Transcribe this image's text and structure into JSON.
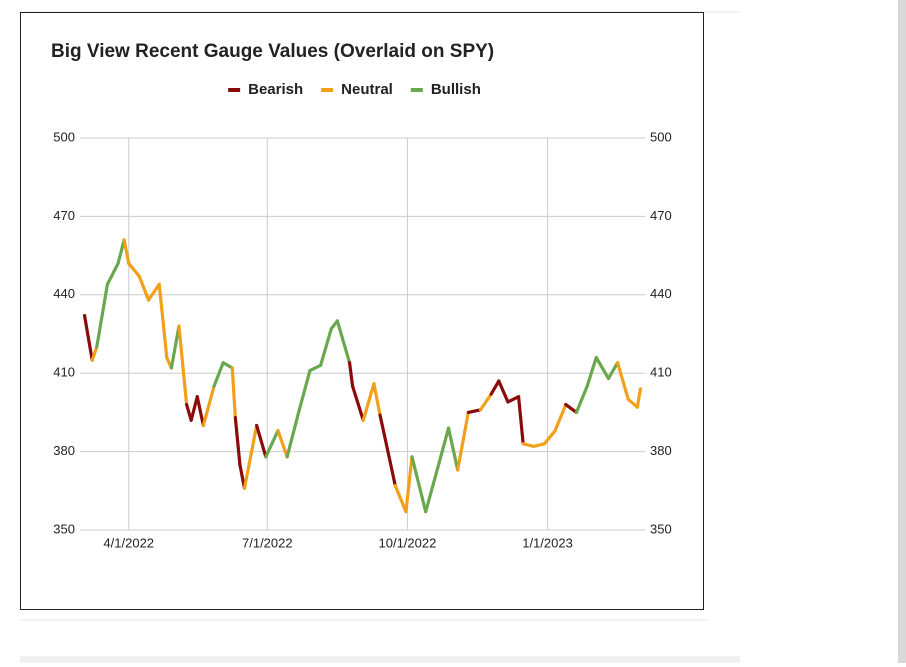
{
  "chart_data": {
    "type": "line",
    "title": "Big View Recent Gauge Values (Overlaid on SPY)",
    "x": [
      "2022-03-03",
      "2022-03-08",
      "2022-03-11",
      "2022-03-18",
      "2022-03-25",
      "2022-03-29",
      "2022-04-01",
      "2022-04-08",
      "2022-04-14",
      "2022-04-21",
      "2022-04-26",
      "2022-04-29",
      "2022-05-04",
      "2022-05-09",
      "2022-05-12",
      "2022-05-16",
      "2022-05-20",
      "2022-05-27",
      "2022-06-02",
      "2022-06-08",
      "2022-06-10",
      "2022-06-13",
      "2022-06-16",
      "2022-06-24",
      "2022-06-30",
      "2022-07-08",
      "2022-07-14",
      "2022-07-22",
      "2022-07-29",
      "2022-08-05",
      "2022-08-12",
      "2022-08-16",
      "2022-08-24",
      "2022-08-26",
      "2022-09-02",
      "2022-09-09",
      "2022-09-13",
      "2022-09-16",
      "2022-09-23",
      "2022-09-30",
      "2022-10-04",
      "2022-10-13",
      "2022-10-21",
      "2022-10-28",
      "2022-11-03",
      "2022-11-10",
      "2022-11-18",
      "2022-11-25",
      "2022-11-30",
      "2022-12-06",
      "2022-12-13",
      "2022-12-16",
      "2022-12-23",
      "2022-12-30",
      "2023-01-06",
      "2023-01-13",
      "2023-01-20",
      "2023-01-27",
      "2023-02-02",
      "2023-02-10",
      "2023-02-16",
      "2023-02-23",
      "2023-03-01",
      "2023-03-03"
    ],
    "series": [
      {
        "name": "Bearish",
        "color": "#8b0a0a",
        "values": [
          432,
          415,
          null,
          null,
          null,
          null,
          null,
          null,
          null,
          null,
          null,
          null,
          null,
          null,
          392,
          401,
          390,
          null,
          null,
          null,
          null,
          375,
          366,
          null,
          378,
          null,
          null,
          null,
          null,
          null,
          null,
          null,
          null,
          405,
          392,
          null,
          null,
          386,
          367,
          null,
          null,
          null,
          null,
          null,
          null,
          null,
          396,
          null,
          407,
          399,
          401,
          383,
          null,
          null,
          null,
          null,
          395,
          null,
          null,
          null,
          null,
          null,
          null,
          null
        ]
      },
      {
        "name": "Neutral",
        "color": "#f29f1a",
        "values": [
          null,
          null,
          420,
          null,
          null,
          null,
          452,
          447,
          438,
          444,
          416,
          412,
          null,
          398,
          null,
          null,
          null,
          405,
          null,
          null,
          393,
          null,
          null,
          390,
          null,
          null,
          378,
          null,
          null,
          null,
          null,
          null,
          null,
          null,
          null,
          406,
          394,
          null,
          null,
          357,
          378,
          null,
          null,
          null,
          null,
          395,
          null,
          402,
          null,
          null,
          null,
          null,
          382,
          383,
          388,
          398,
          null,
          null,
          null,
          null,
          null,
          400,
          397,
          404
        ]
      },
      {
        "name": "Bullish",
        "color": "#6aa84f",
        "values": [
          null,
          null,
          null,
          444,
          452,
          461,
          null,
          null,
          null,
          null,
          null,
          null,
          428,
          null,
          null,
          null,
          null,
          null,
          414,
          412,
          null,
          null,
          null,
          null,
          null,
          388,
          null,
          396,
          411,
          413,
          427,
          430,
          414,
          null,
          null,
          null,
          null,
          null,
          null,
          null,
          null,
          357,
          374,
          389,
          373,
          null,
          null,
          null,
          null,
          null,
          null,
          null,
          null,
          null,
          null,
          null,
          null,
          405,
          416,
          408,
          414,
          null,
          null,
          null
        ]
      }
    ],
    "xlim": [
      "2022-02-28",
      "2023-03-06"
    ],
    "xticks": [
      {
        "value": "2022-04-01",
        "label": "4/1/2022"
      },
      {
        "value": "2022-07-01",
        "label": "7/1/2022"
      },
      {
        "value": "2022-10-01",
        "label": "10/1/2022"
      },
      {
        "value": "2023-01-01",
        "label": "1/1/2023"
      }
    ],
    "ylim": [
      350,
      500
    ],
    "yticks": [
      350,
      380,
      410,
      440,
      470,
      500
    ],
    "y2lim": [
      350,
      500
    ],
    "y2ticks": [
      350,
      380,
      410,
      440,
      470,
      500
    ],
    "grid": true,
    "legend": "top"
  }
}
